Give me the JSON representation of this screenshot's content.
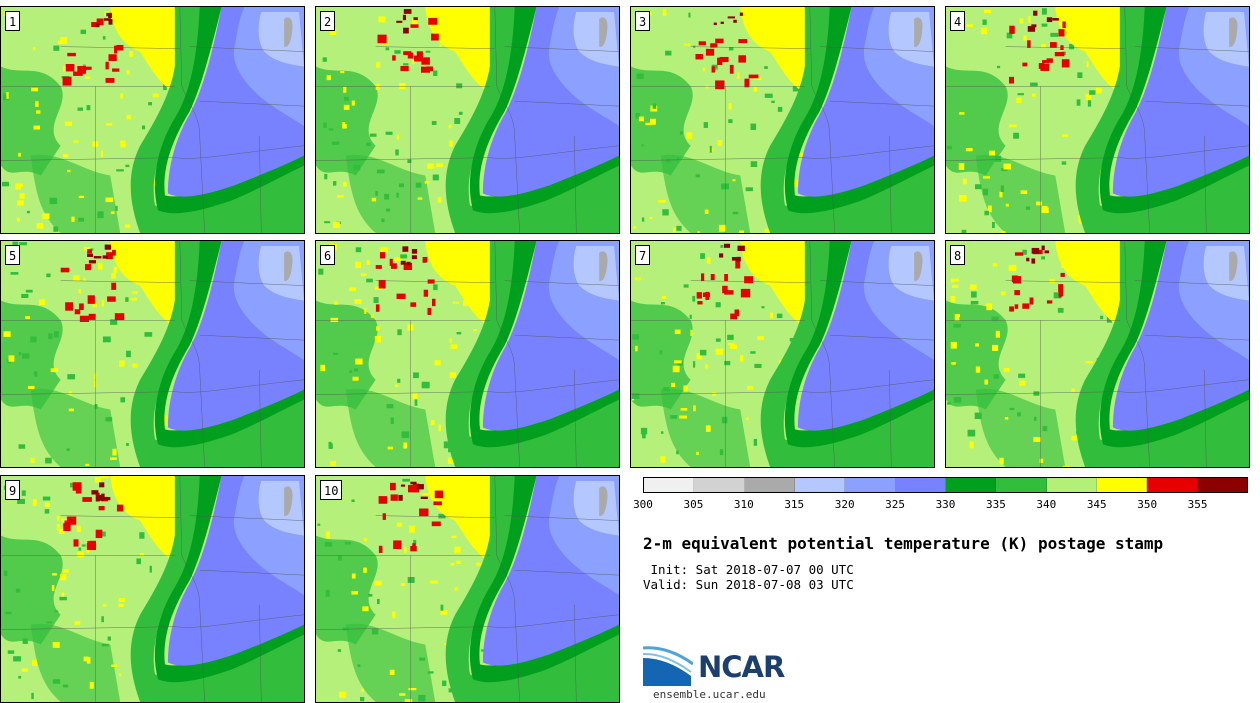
{
  "panels": [
    {
      "label": "1"
    },
    {
      "label": "2"
    },
    {
      "label": "3"
    },
    {
      "label": "4"
    },
    {
      "label": "5"
    },
    {
      "label": "6"
    },
    {
      "label": "7"
    },
    {
      "label": "8"
    },
    {
      "label": "9"
    },
    {
      "label": "10"
    }
  ],
  "colorbar": {
    "colors": [
      "#f0f0f0",
      "#d2d2d2",
      "#aaaaaa",
      "#b4c8ff",
      "#8ca0ff",
      "#7882ff",
      "#00a01e",
      "#32be3c",
      "#b4f078",
      "#ffff00",
      "#e60000",
      "#8c0000"
    ],
    "ticks": [
      "300",
      "305",
      "310",
      "315",
      "320",
      "325",
      "330",
      "335",
      "340",
      "345",
      "350",
      "355"
    ]
  },
  "title": "2-m equivalent potential temperature (K) postage stamp",
  "init": " Init: Sat 2018-07-07 00 UTC",
  "valid": "Valid: Sun 2018-07-08 03 UTC",
  "logo": {
    "text": "NCAR",
    "url": "ensemble.ucar.edu"
  }
}
